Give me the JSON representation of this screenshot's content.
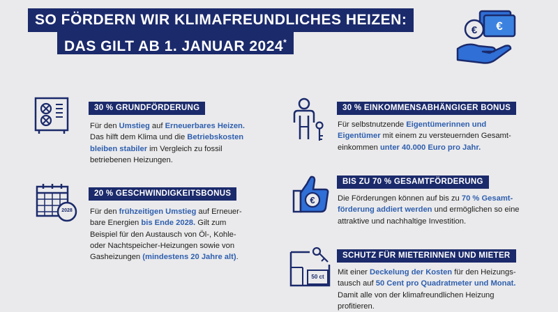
{
  "header": {
    "line1": "SO FÖRDERN WIR KLIMAFREUNDLICHES HEIZEN:",
    "line2": "DAS GILT AB 1. JANUAR 2024",
    "line2_mark": "*"
  },
  "icons": {
    "money": "euro-money-hand-icon",
    "heater": "heat-pump-icon",
    "calendar": "calendar-2028-icon",
    "person": "person-key-icon",
    "thumb": "thumbs-up-euro-icon",
    "floorplan": "floorplan-key-icon"
  },
  "calendar_year": "2028",
  "floorplan_price": "50 ct",
  "colors": {
    "navy": "#1b2a6b",
    "highlight": "#2f5fae",
    "background": "#eaeaec"
  },
  "sections": {
    "grund": {
      "title": "30 % GRUNDFÖRDERUNG",
      "t1": "Für den ",
      "h1": "Umstieg",
      "t2": " auf ",
      "h2": "Erneuerbares Heizen.",
      "t3": "Das hilft dem Klima und die ",
      "h3": "Betriebskosten",
      "h4": "bleiben stabiler",
      "t4": " im Vergleich zu fossil",
      "t5": "betriebenen Heizungen."
    },
    "speed": {
      "title": "20 % GESCHWINDIGKEITSBONUS",
      "t1": "Für den ",
      "h1": "frühzeitigen Umstieg",
      "t2": " auf Erneuer-",
      "t3": "bare Energien ",
      "h2": "bis Ende 2028.",
      "t4": " Gilt zum",
      "t5": "Beispiel für den Austausch von Öl-, Kohle-",
      "t6": "oder Nachtspeicher-Heizungen sowie von",
      "t7": "Gasheizungen ",
      "h3": "(mindestens 20 Jahre alt)",
      "t8": "."
    },
    "income": {
      "title": "30 % EINKOMMENSABHÄNGIGER BONUS",
      "t1": "Für selbstnutzende ",
      "h1": "Eigentümerinnen und",
      "h2": "Eigentümer",
      "t2": " mit einem zu versteuernden Gesamt-",
      "t3": "einkommen ",
      "h3": "unter 40.000 Euro pro Jahr."
    },
    "total": {
      "title": "BIS ZU 70 % GESAMTFÖRDERUNG",
      "t1": "Die Förderungen können auf bis zu ",
      "h1": "70 % Gesamt-",
      "h2": "förderung addiert werden",
      "t2": " und ermöglichen so eine",
      "t3": "attraktive und nachhaltige Investition."
    },
    "tenants": {
      "title": "SCHUTZ FÜR MIETERINNEN UND MIETER",
      "t1": "Mit einer ",
      "h1": "Deckelung der Kosten",
      "t2": " für den Heizungs-",
      "t3": "tausch auf ",
      "h2": "50 Cent pro Quadratmeter und Monat.",
      "t4": "Damit alle von der klimafreundlichen Heizung",
      "t5": "profitieren."
    }
  }
}
